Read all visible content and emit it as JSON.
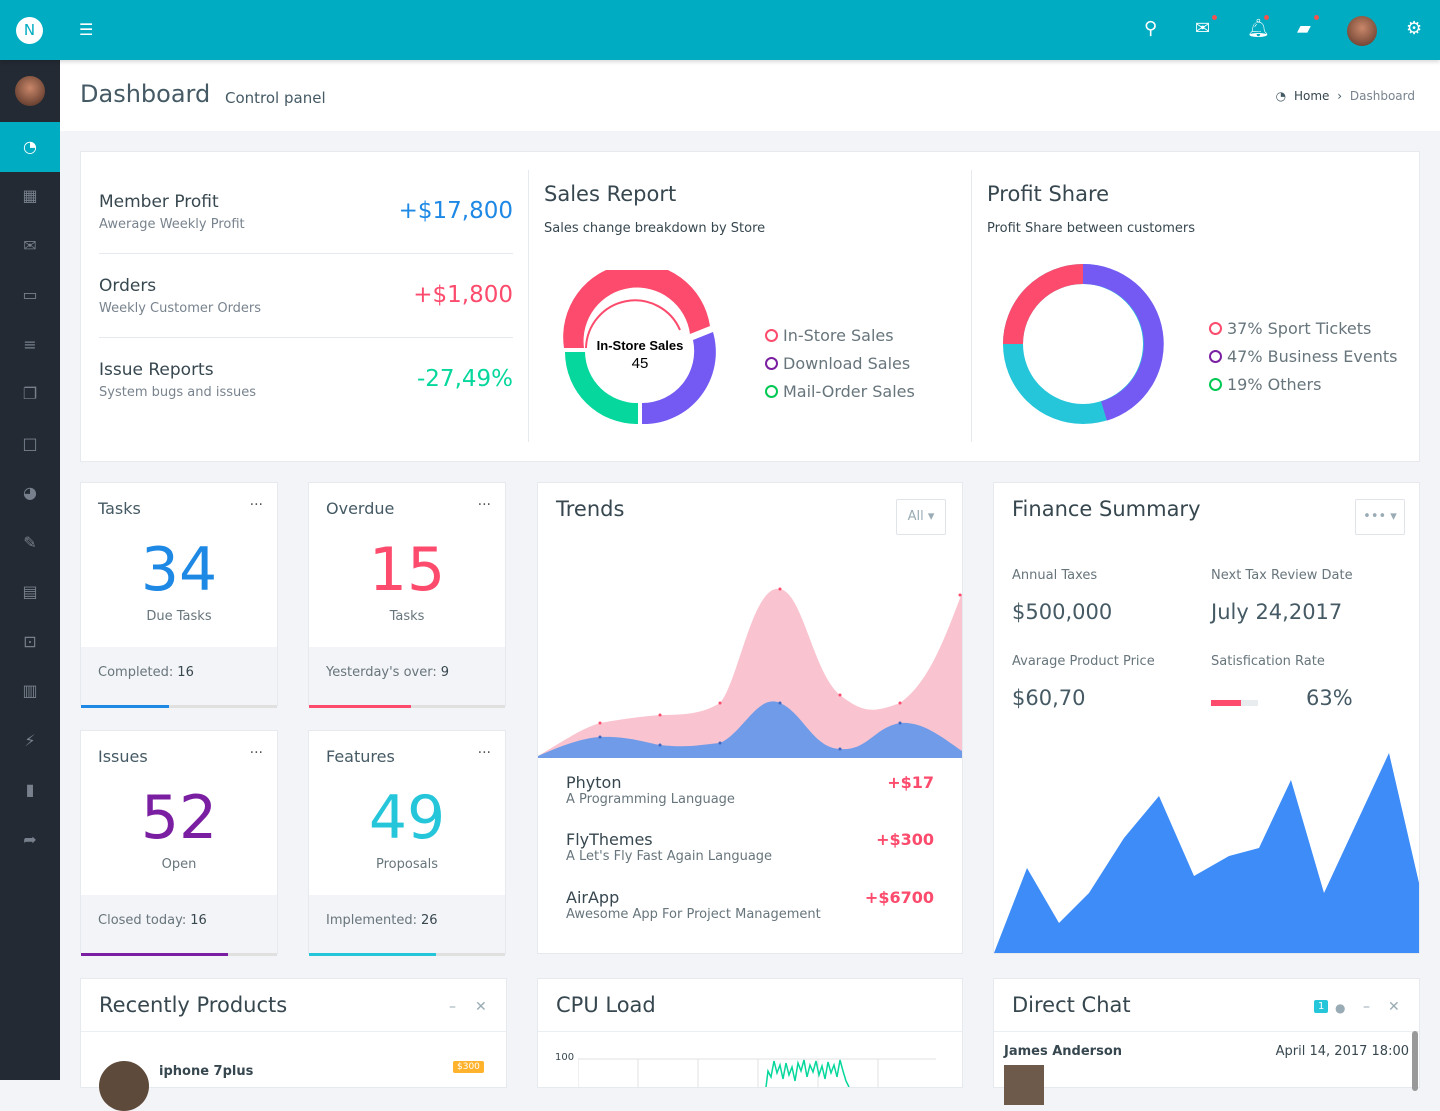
{
  "header": {
    "title": "Dashboard",
    "subtitle": "Control panel",
    "breadcrumb": [
      "Home",
      "Dashboard"
    ]
  },
  "topbar": {
    "icons": [
      "menu-icon",
      "search-icon",
      "mail-icon",
      "bell-icon",
      "chat-icon",
      "avatar",
      "gear-icon"
    ]
  },
  "sidebar": {
    "items": [
      "dashboard",
      "apps",
      "mail",
      "laptop",
      "list",
      "copy",
      "square",
      "pie-chart",
      "edit",
      "table",
      "inbox",
      "map",
      "plug",
      "file",
      "share"
    ]
  },
  "metrics": [
    {
      "title": "Member Profit",
      "sub": "Awerage Weekly Profit",
      "value": "+$17,800",
      "color": "#1e88e5"
    },
    {
      "title": "Orders",
      "sub": "Weekly Customer Orders",
      "value": "+$1,800",
      "color": "#fc4b6c"
    },
    {
      "title": "Issue Reports",
      "sub": "System bugs and issues",
      "value": "-27,49%",
      "color": "#26c6da"
    }
  ],
  "sales": {
    "title": "Sales Report",
    "sub": "Sales change breakdown by Store",
    "center_label": "In-Store Sales",
    "center_value": "45",
    "legend": [
      "In-Store Sales",
      "Download Sales",
      "Mail-Order Sales"
    ]
  },
  "profit": {
    "title": "Profit Share",
    "sub": "Profit Share between customers",
    "legend": [
      "37% Sport Tickets",
      "47% Business Events",
      "19% Others"
    ]
  },
  "stats": [
    {
      "title": "Tasks",
      "value": "34",
      "label": "Due Tasks",
      "foot": "Completed:",
      "foot_value": "16",
      "color": "#1e88e5",
      "progress": 0.45
    },
    {
      "title": "Overdue",
      "value": "15",
      "label": "Tasks",
      "foot": "Yesterday's over:",
      "foot_value": "9",
      "color": "#fc4b6c",
      "progress": 0.5
    },
    {
      "title": "Issues",
      "value": "52",
      "label": "Open",
      "foot": "Closed today:",
      "foot_value": "16",
      "color": "#7b1fa2",
      "progress": 0.75
    },
    {
      "title": "Features",
      "value": "49",
      "label": "Proposals",
      "foot": "Implemented:",
      "foot_value": "26",
      "color": "#26c6da",
      "progress": 0.65
    }
  ],
  "trends": {
    "title": "Trends",
    "filter": "All",
    "items": [
      {
        "name": "Phyton",
        "desc": "A Programming Language",
        "value": "+$17"
      },
      {
        "name": "FlyThemes",
        "desc": "A Let's Fly Fast Again Language",
        "value": "+$300"
      },
      {
        "name": "AirApp",
        "desc": "Awesome App For Project Management",
        "value": "+$6700"
      }
    ]
  },
  "finance": {
    "title": "Finance Summary",
    "menu": "•••",
    "annual_taxes_label": "Annual Taxes",
    "annual_taxes": "$500,000",
    "review_label": "Next Tax Review Date",
    "review": "July 24,2017",
    "avg_label": "Avarage Product Price",
    "avg": "$60,70",
    "sat_label": "Satisfication Rate",
    "sat": "63%",
    "sat_progress": 0.63
  },
  "products": {
    "title": "Recently Products",
    "items": [
      {
        "name": "iphone 7plus",
        "price": "$300"
      }
    ]
  },
  "cpu": {
    "title": "CPU Load",
    "axis_max": "100"
  },
  "chat": {
    "title": "Direct Chat",
    "badge": "1",
    "author": "James Anderson",
    "time": "April 14, 2017 18:00"
  }
}
